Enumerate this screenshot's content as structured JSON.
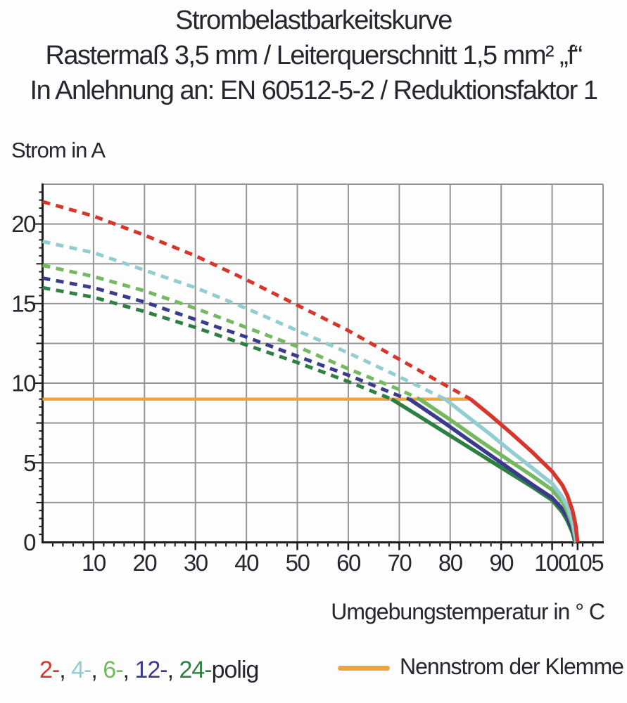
{
  "title": {
    "line1": "Strombelastbarkeitskurve",
    "line2": "Rastermaß 3,5 mm / Leiterquerschnitt 1,5 mm² „f“",
    "line3": "In Anlehnung an: EN 60512-5-2 / Reduktionsfaktor 1"
  },
  "legend_poles": {
    "parts": [
      {
        "text": "2-",
        "color": "#d6362b"
      },
      {
        "text": ", ",
        "color": "#26262e"
      },
      {
        "text": "4-",
        "color": "#92cdd2"
      },
      {
        "text": ", ",
        "color": "#26262e"
      },
      {
        "text": "6-",
        "color": "#74b960"
      },
      {
        "text": ", ",
        "color": "#26262e"
      },
      {
        "text": "12-",
        "color": "#3a3a8f"
      },
      {
        "text": ", ",
        "color": "#26262e"
      },
      {
        "text": "24-",
        "color": "#2e7f42"
      },
      {
        "text": "polig",
        "color": "#26262e"
      }
    ]
  },
  "chart_data": {
    "type": "line",
    "title": "Strombelastbarkeitskurve",
    "xlabel": "Umgebungstemperatur in ° C",
    "ylabel": "Strom in A",
    "xlim": [
      0,
      110
    ],
    "ylim": [
      0,
      22.5
    ],
    "grid": {
      "x_step": 10,
      "y_step": 2.5,
      "color": "#969696"
    },
    "minor_ticks": {
      "x_step": 2,
      "y_step": 0.5
    },
    "axis_color": "#1d1d1d",
    "text_color": "#26262e",
    "x_ticks": [
      {
        "v": 10,
        "t": "10"
      },
      {
        "v": 20,
        "t": "20"
      },
      {
        "v": 30,
        "t": "30"
      },
      {
        "v": 40,
        "t": "40"
      },
      {
        "v": 50,
        "t": "50"
      },
      {
        "v": 60,
        "t": "60"
      },
      {
        "v": 70,
        "t": "70"
      },
      {
        "v": 80,
        "t": "80"
      },
      {
        "v": 90,
        "t": "90"
      },
      {
        "v": 100,
        "t": "100"
      },
      {
        "v": 105,
        "t": "105",
        "dx": 11
      }
    ],
    "y_ticks": [
      {
        "v": 0,
        "t": "0"
      },
      {
        "v": 5,
        "t": "5"
      },
      {
        "v": 10,
        "t": "10"
      },
      {
        "v": 15,
        "t": "15"
      },
      {
        "v": 20,
        "t": "20"
      }
    ],
    "nennstrom": {
      "label": "Nennstrom der Klemme",
      "value": 9,
      "x_start": 0,
      "x_end": 84,
      "color": "#f2a43c"
    },
    "series": [
      {
        "name": "24-polig",
        "color": "#2e7f42",
        "dashed": [
          [
            0,
            16.0
          ],
          [
            10,
            15.4
          ],
          [
            20,
            14.5
          ],
          [
            30,
            13.5
          ],
          [
            40,
            12.4
          ],
          [
            50,
            11.3
          ],
          [
            60,
            10.1
          ],
          [
            68.5,
            9
          ]
        ],
        "solid": [
          [
            68.5,
            9
          ],
          [
            75,
            7.7
          ],
          [
            82,
            6.3
          ],
          [
            89,
            4.9
          ],
          [
            96,
            3.5
          ],
          [
            100,
            2.65
          ],
          [
            102,
            1.9
          ],
          [
            103,
            1.35
          ],
          [
            104,
            0.6
          ],
          [
            104.5,
            0
          ]
        ]
      },
      {
        "name": "12-polig",
        "color": "#3a3a8f",
        "dashed": [
          [
            0,
            16.6
          ],
          [
            10,
            16.0
          ],
          [
            20,
            15.1
          ],
          [
            30,
            14.0
          ],
          [
            40,
            12.9
          ],
          [
            50,
            11.7
          ],
          [
            60,
            10.5
          ],
          [
            70,
            9.2
          ],
          [
            72,
            9
          ]
        ],
        "solid": [
          [
            72,
            9
          ],
          [
            78,
            7.7
          ],
          [
            84,
            6.35
          ],
          [
            90,
            5.0
          ],
          [
            96,
            3.65
          ],
          [
            100,
            2.8
          ],
          [
            102,
            2.1
          ],
          [
            103,
            1.55
          ],
          [
            104,
            0.8
          ],
          [
            104.6,
            0
          ]
        ]
      },
      {
        "name": "6-polig",
        "color": "#74b960",
        "dashed": [
          [
            0,
            17.4
          ],
          [
            10,
            16.7
          ],
          [
            20,
            15.8
          ],
          [
            30,
            14.7
          ],
          [
            40,
            13.5
          ],
          [
            50,
            12.3
          ],
          [
            60,
            10.9
          ],
          [
            70,
            9.6
          ],
          [
            74,
            9
          ]
        ],
        "solid": [
          [
            74,
            9
          ],
          [
            80,
            7.7
          ],
          [
            86,
            6.35
          ],
          [
            92,
            5.05
          ],
          [
            96,
            4.2
          ],
          [
            100,
            3.3
          ],
          [
            102,
            2.55
          ],
          [
            103,
            1.95
          ],
          [
            104,
            1.1
          ],
          [
            104.7,
            0
          ]
        ]
      },
      {
        "name": "4-polig",
        "color": "#92cdd2",
        "dashed": [
          [
            0,
            18.9
          ],
          [
            10,
            18.2
          ],
          [
            20,
            17.1
          ],
          [
            30,
            16.0
          ],
          [
            40,
            14.7
          ],
          [
            50,
            13.3
          ],
          [
            60,
            11.9
          ],
          [
            70,
            10.4
          ],
          [
            79,
            9
          ]
        ],
        "solid": [
          [
            79,
            9
          ],
          [
            84,
            7.75
          ],
          [
            88,
            6.75
          ],
          [
            92,
            5.7
          ],
          [
            96,
            4.7
          ],
          [
            100,
            3.7
          ],
          [
            102,
            2.85
          ],
          [
            103,
            2.25
          ],
          [
            104,
            1.3
          ],
          [
            104.8,
            0
          ]
        ]
      },
      {
        "name": "2-polig",
        "color": "#d6362b",
        "dashed": [
          [
            0,
            21.4
          ],
          [
            10,
            20.5
          ],
          [
            20,
            19.3
          ],
          [
            30,
            18.0
          ],
          [
            40,
            16.5
          ],
          [
            50,
            14.9
          ],
          [
            60,
            13.3
          ],
          [
            70,
            11.5
          ],
          [
            80,
            9.7
          ],
          [
            84,
            9
          ]
        ],
        "solid": [
          [
            84,
            9
          ],
          [
            88,
            7.95
          ],
          [
            92,
            6.85
          ],
          [
            96,
            5.7
          ],
          [
            100,
            4.45
          ],
          [
            102,
            3.6
          ],
          [
            103,
            2.95
          ],
          [
            104,
            2.0
          ],
          [
            104.6,
            1.1
          ],
          [
            105,
            0
          ]
        ]
      }
    ]
  }
}
